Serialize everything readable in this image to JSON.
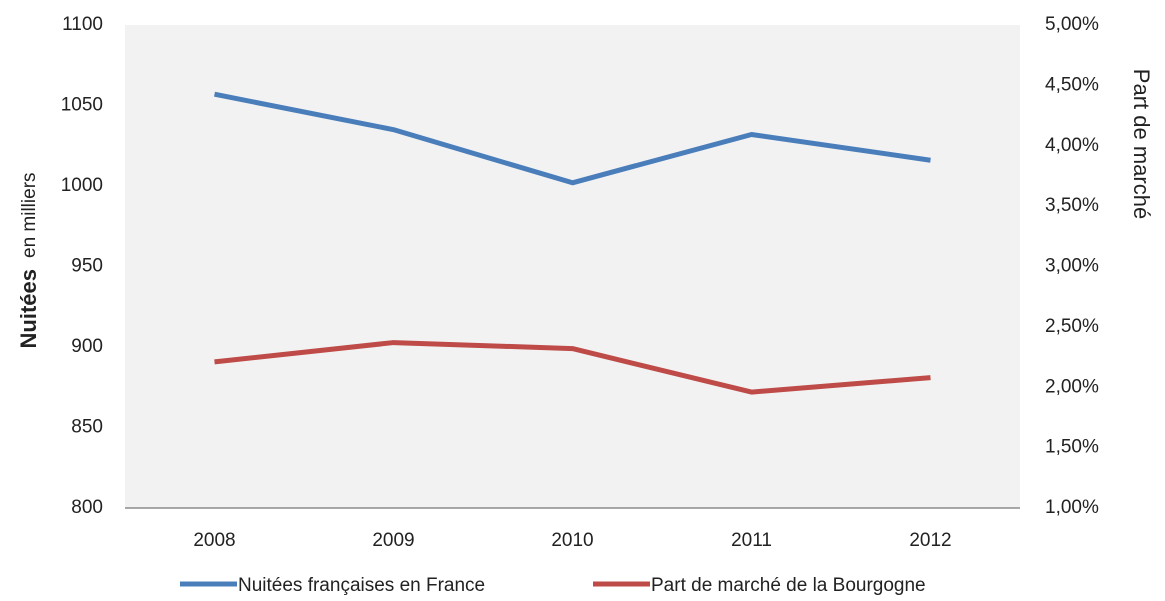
{
  "chart_data": {
    "type": "line",
    "categories": [
      "2008",
      "2009",
      "2010",
      "2011",
      "2012"
    ],
    "series": [
      {
        "name": "Nuitées françaises en France",
        "color": "#4a7ebb",
        "values": [
          1057,
          1035,
          1002,
          1032,
          1016
        ]
      },
      {
        "name": "Part de marché de la Bourgogne",
        "color": "#be4b48",
        "axis": "y2",
        "values": [
          2.21,
          2.37,
          2.32,
          1.96,
          2.08
        ]
      }
    ],
    "ylabel": "Nuitées",
    "ylabel_unit": "en milliers",
    "y2label": "Part de marché",
    "ylim": [
      800,
      1100
    ],
    "yticks": [
      800,
      850,
      900,
      950,
      1000,
      1050,
      1100
    ],
    "y2lim": [
      1,
      5
    ],
    "y2ticks": [
      {
        "value": 1,
        "label": "1,00%"
      },
      {
        "value": 1.5,
        "label": "1,50%"
      },
      {
        "value": 2,
        "label": "2,00%"
      },
      {
        "value": 2.5,
        "label": "2,50%"
      },
      {
        "value": 3,
        "label": "3,00%"
      },
      {
        "value": 3.5,
        "label": "3,50%"
      },
      {
        "value": 4,
        "label": "4,00%"
      },
      {
        "value": 4.5,
        "label": "4,50%"
      },
      {
        "value": 5,
        "label": "5,00%"
      }
    ],
    "grid": false,
    "legend": "bottom"
  }
}
